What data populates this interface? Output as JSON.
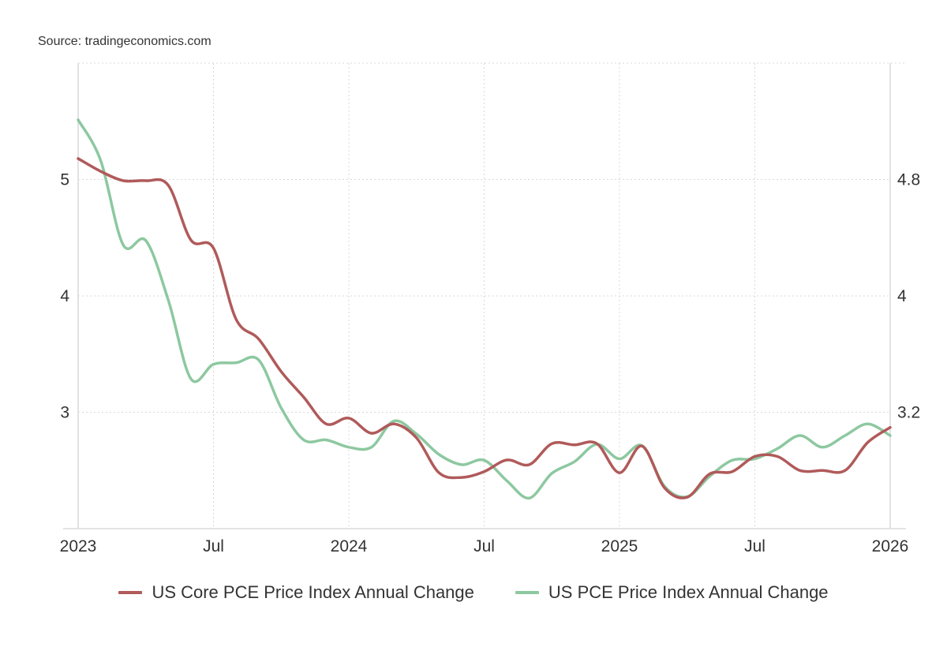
{
  "source": "Source: tradingeconomics.com",
  "chart_data": {
    "type": "line",
    "title": "",
    "xlabel": "",
    "ylabel": "",
    "x_ticks": [
      "2023",
      "Jul",
      "2024",
      "Jul",
      "2025",
      "Jul",
      "2026"
    ],
    "x": [
      "2023-01",
      "2023-02",
      "2023-03",
      "2023-04",
      "2023-05",
      "2023-06",
      "2023-07",
      "2023-08",
      "2023-09",
      "2023-10",
      "2023-11",
      "2023-12",
      "2024-01",
      "2024-02",
      "2024-03",
      "2024-04",
      "2024-05",
      "2024-06",
      "2024-07",
      "2024-08",
      "2024-09",
      "2024-10",
      "2024-11",
      "2024-12",
      "2025-01",
      "2025-02",
      "2025-03",
      "2025-04",
      "2025-05",
      "2025-06",
      "2025-07",
      "2025-08",
      "2025-09",
      "2025-10",
      "2025-11",
      "2025-12",
      "2026-01"
    ],
    "left_axis": {
      "ticks": [
        "5",
        "4",
        "3"
      ],
      "tick_values": [
        5,
        4,
        3
      ],
      "ylim": [
        2.0,
        6.0
      ]
    },
    "right_axis": {
      "ticks": [
        "4.8",
        "4",
        "3.2"
      ],
      "tick_values": [
        4.8,
        4.0,
        3.2
      ],
      "ylim": [
        2.4,
        5.6
      ]
    },
    "grid": true,
    "legend_position": "bottom",
    "series": [
      {
        "name": "US Core PCE Price Index Annual Change",
        "axis": "left",
        "color": "#b05a5a",
        "values": [
          5.18,
          5.07,
          4.99,
          4.99,
          4.95,
          4.48,
          4.41,
          3.8,
          3.63,
          3.35,
          3.13,
          2.9,
          2.95,
          2.82,
          2.9,
          2.78,
          2.48,
          2.44,
          2.49,
          2.59,
          2.55,
          2.73,
          2.72,
          2.73,
          2.48,
          2.71,
          2.35,
          2.27,
          2.47,
          2.49,
          2.62,
          2.62,
          2.5,
          2.5,
          2.5,
          2.74,
          2.87
        ]
      },
      {
        "name": "US PCE Price Index Annual Change",
        "axis": "right",
        "color": "#8dc8a0",
        "values": [
          5.21,
          4.93,
          4.35,
          4.38,
          3.97,
          3.43,
          3.53,
          3.54,
          3.56,
          3.23,
          3.01,
          3.01,
          2.96,
          2.96,
          3.14,
          3.05,
          2.91,
          2.84,
          2.87,
          2.73,
          2.61,
          2.78,
          2.86,
          2.98,
          2.88,
          2.97,
          2.69,
          2.62,
          2.76,
          2.87,
          2.88,
          2.95,
          3.04,
          2.96,
          3.04,
          3.12,
          3.04
        ]
      }
    ]
  }
}
